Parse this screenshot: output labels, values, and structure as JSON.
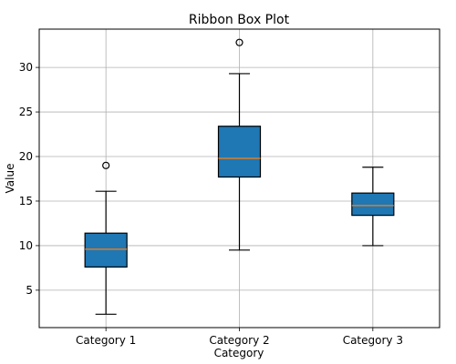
{
  "chart_data": {
    "type": "box",
    "title": "Ribbon Box Plot",
    "xlabel": "Category",
    "ylabel": "Value",
    "ylim": [
      0.8,
      34.3
    ],
    "yticks": [
      5,
      10,
      15,
      20,
      25,
      30
    ],
    "grid": true,
    "categories": [
      "Category 1",
      "Category 2",
      "Category 3"
    ],
    "boxes": [
      {
        "whisker_low": 2.3,
        "q1": 7.6,
        "median": 9.6,
        "q3": 11.4,
        "whisker_high": 16.1,
        "fliers": [
          19.0
        ]
      },
      {
        "whisker_low": 9.5,
        "q1": 17.7,
        "median": 19.8,
        "q3": 23.4,
        "whisker_high": 29.3,
        "fliers": [
          32.8
        ]
      },
      {
        "whisker_low": 10.0,
        "q1": 13.4,
        "median": 14.5,
        "q3": 15.9,
        "whisker_high": 18.8,
        "fliers": []
      }
    ],
    "colors": {
      "box_fill": "#1f77b4",
      "median": "#ff7f0e",
      "grid": "#b0b0b0"
    }
  }
}
